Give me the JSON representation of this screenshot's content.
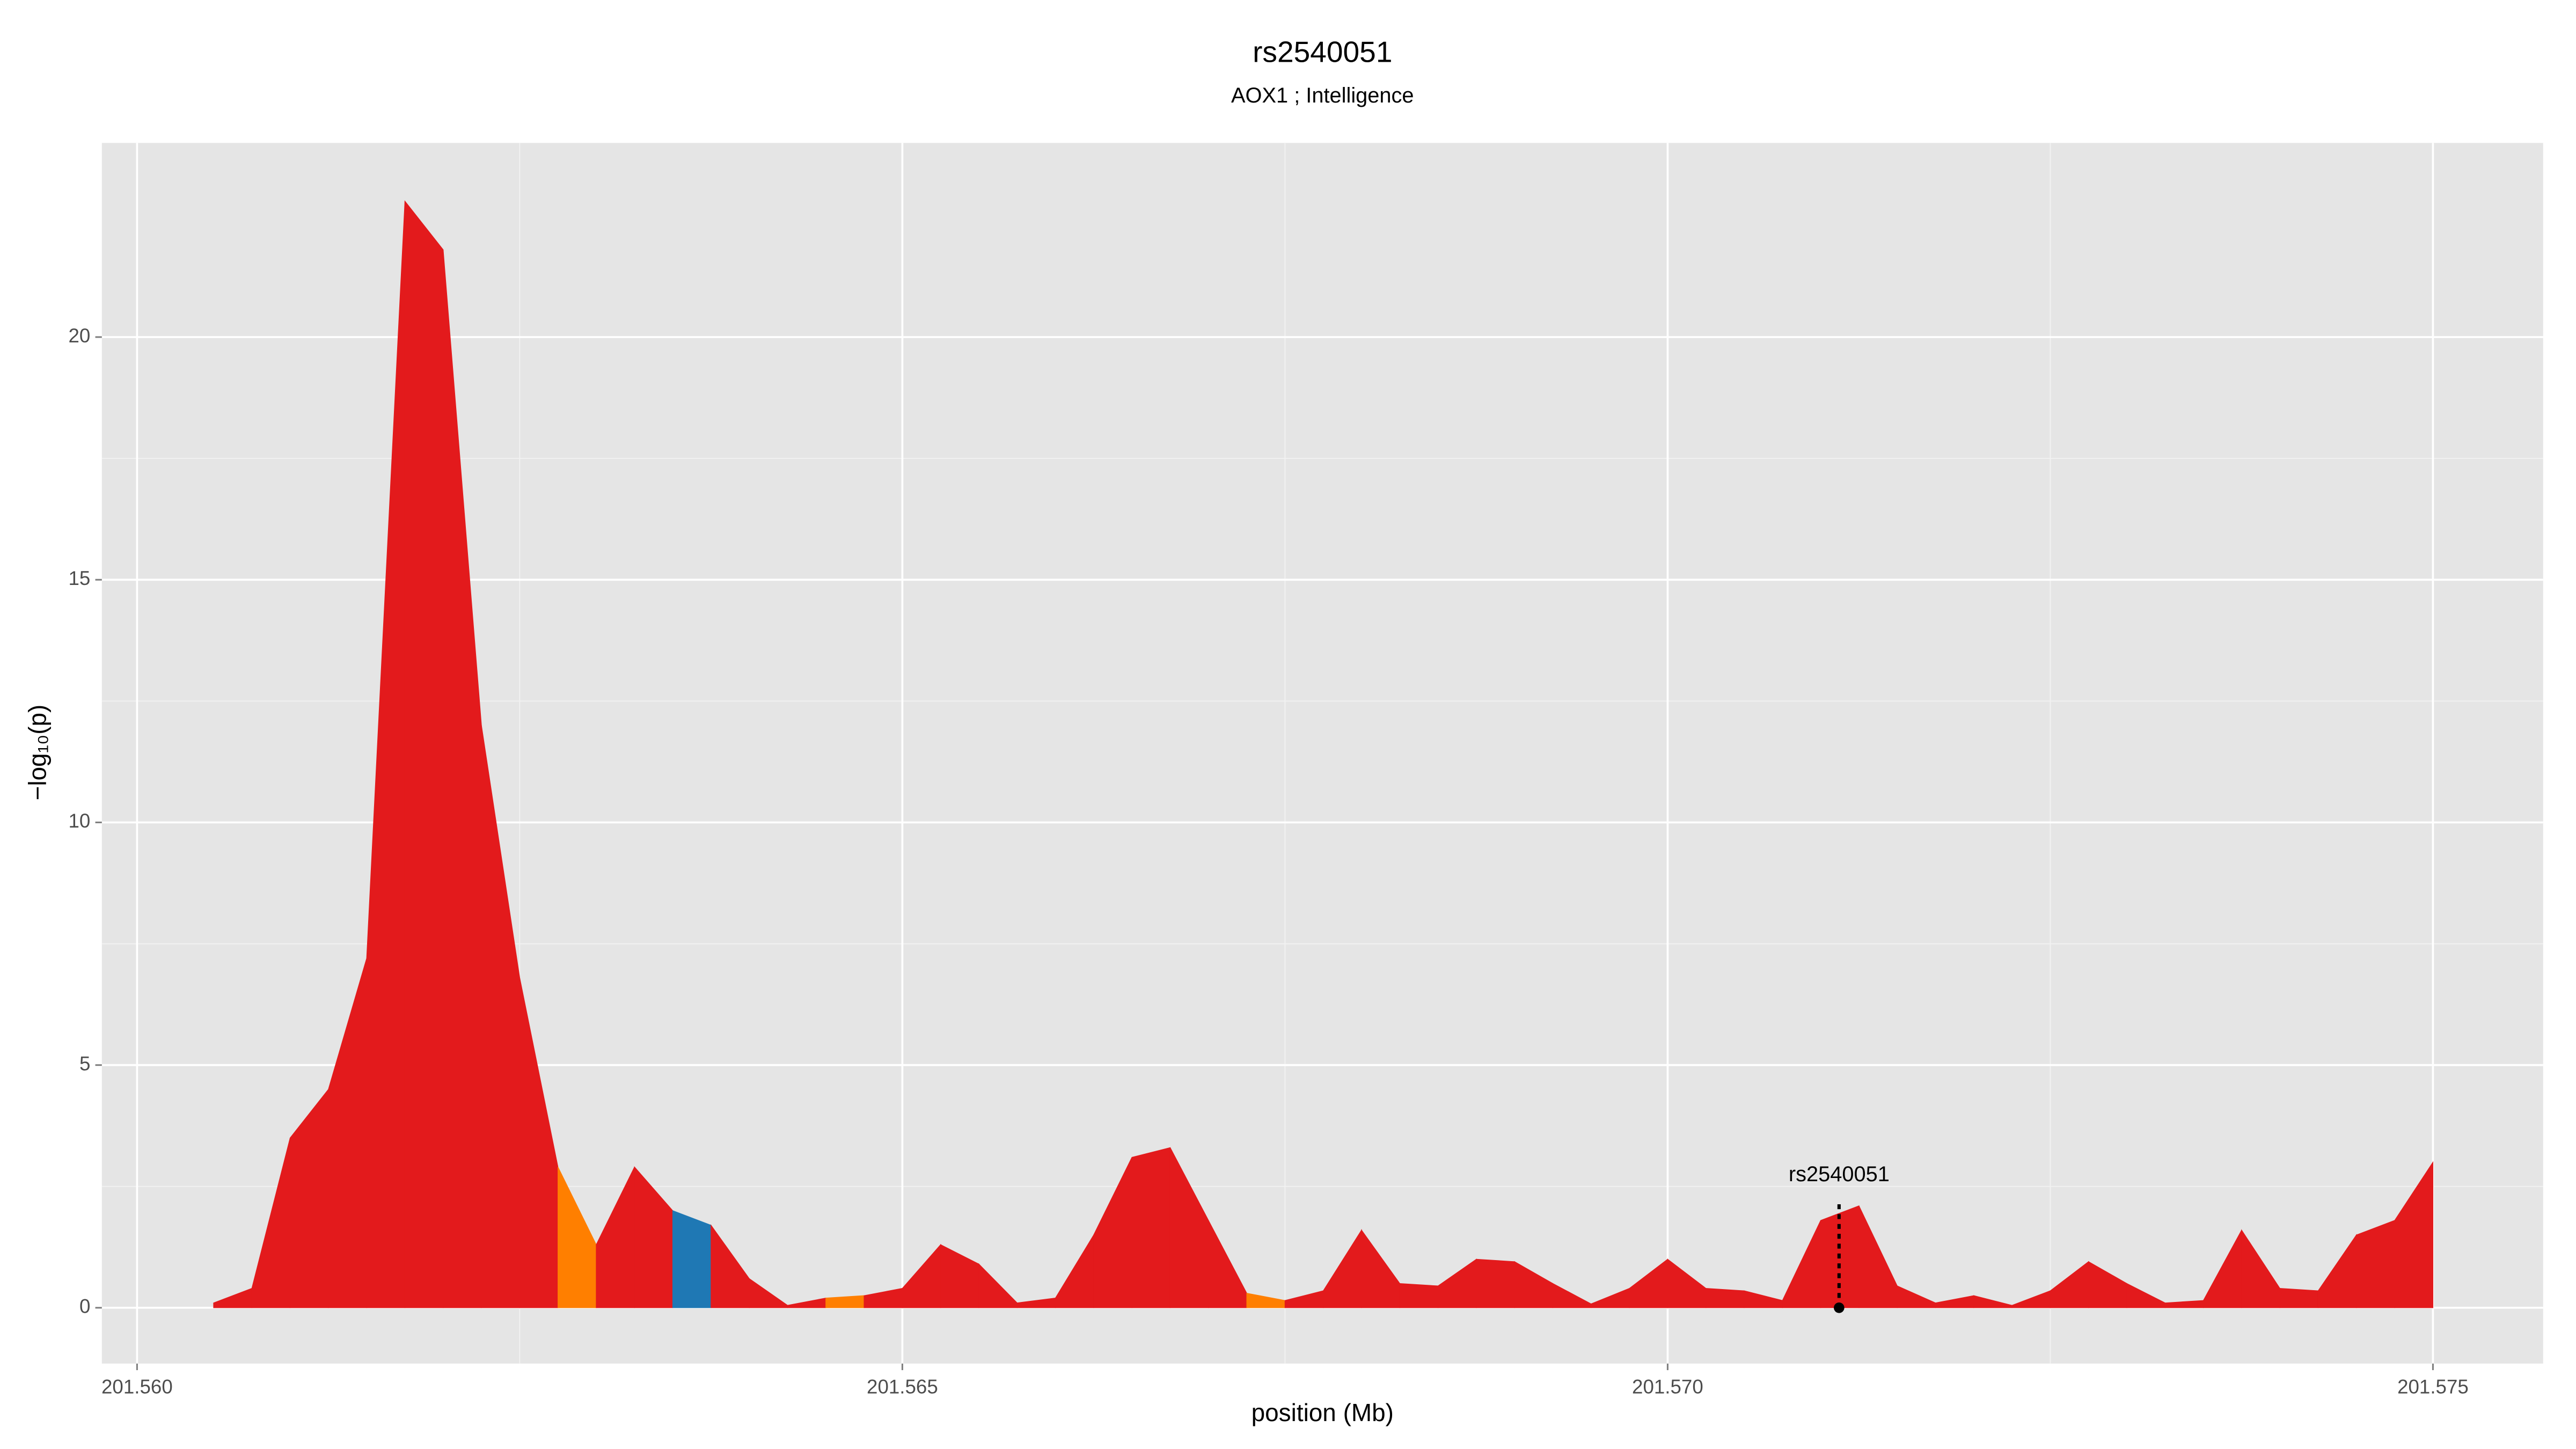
{
  "chart_data": {
    "type": "area",
    "title": "rs2540051",
    "subtitle": "AOX1 ; Intelligence",
    "x_label": "position (Mb)",
    "y_label": "−log₁₀(p)",
    "x_start": 201.5605,
    "x_step": 0.00025,
    "values": [
      0.1,
      0.4,
      3.5,
      4.5,
      7.2,
      22.8,
      21.8,
      12,
      6.8,
      2.9,
      1.3,
      2.9,
      2.0,
      1.7,
      0.6,
      0.05,
      0.2,
      0.25,
      0.4,
      1.3,
      0.9,
      0.1,
      0.2,
      1.5,
      3.1,
      3.3,
      1.8,
      0.3,
      0.15,
      0.35,
      1.6,
      0.5,
      0.45,
      1.0,
      0.95,
      0.5,
      0.08,
      0.4,
      1.0,
      0.4,
      0.35,
      0.15,
      1.8,
      2.1,
      0.45,
      0.1,
      0.25,
      0.05,
      0.35,
      0.95,
      0.5,
      0.1,
      0.15,
      1.6,
      0.4,
      0.35,
      1.5,
      1.8,
      3.0
    ],
    "colors": [
      "#e31a1c",
      "#e31a1c",
      "#e31a1c",
      "#e31a1c",
      "#e31a1c",
      "#e31a1c",
      "#e31a1c",
      "#e31a1c",
      "#e31a1c",
      "#ff7f00",
      "#e31a1c",
      "#e31a1c",
      "#1f78b4",
      "#e31a1c",
      "#e31a1c",
      "#e31a1c",
      "#ff7f00",
      "#e31a1c",
      "#e31a1c",
      "#e31a1c",
      "#e31a1c",
      "#e31a1c",
      "#e31a1c",
      "#e31a1c",
      "#e31a1c",
      "#e31a1c",
      "#e31a1c",
      "#ff7f00",
      "#e31a1c",
      "#e31a1c",
      "#e31a1c",
      "#e31a1c",
      "#e31a1c",
      "#e31a1c",
      "#e31a1c",
      "#e31a1c",
      "#e31a1c",
      "#e31a1c",
      "#e31a1c",
      "#e31a1c",
      "#e31a1c",
      "#e31a1c",
      "#e31a1c",
      "#e31a1c",
      "#e31a1c",
      "#e31a1c",
      "#e31a1c",
      "#e31a1c",
      "#e31a1c",
      "#e31a1c",
      "#e31a1c",
      "#e31a1c",
      "#e31a1c",
      "#e31a1c",
      "#e31a1c",
      "#e31a1c",
      "#e31a1c",
      "#e31a1c",
      "#e31a1c"
    ],
    "marker": {
      "label": "rs2540051",
      "x": 201.57112
    },
    "xlim": [
      201.55977,
      201.57572
    ],
    "ylim": [
      -1.15,
      24
    ],
    "xticks": [
      {
        "value": 201.56,
        "label": "201.560"
      },
      201.565,
      {
        "value": 201.57,
        "label": "201.570"
      },
      201.575
    ],
    "yticks": [
      0,
      5,
      10,
      15,
      20
    ],
    "grid": true
  }
}
